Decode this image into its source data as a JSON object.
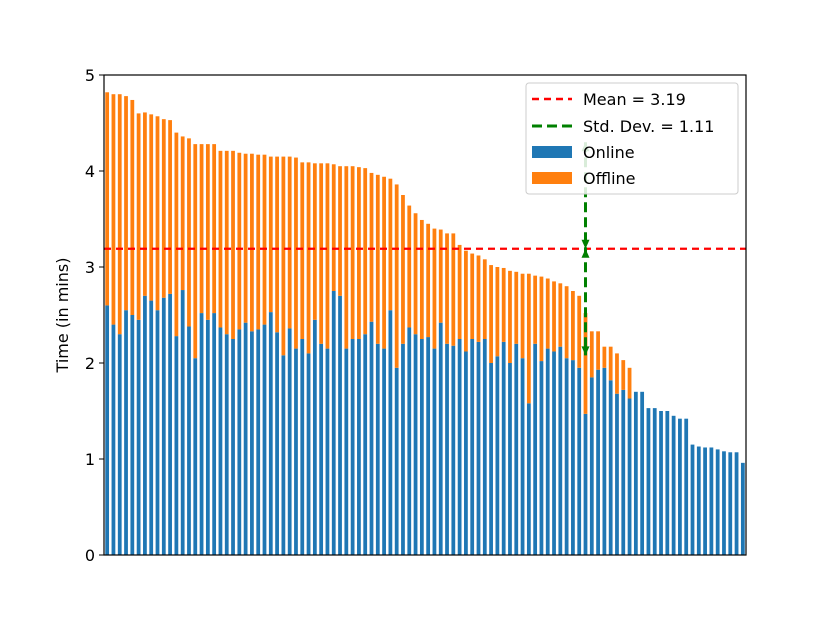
{
  "chart_data": {
    "type": "bar",
    "stacked": true,
    "title": "",
    "xlabel": "",
    "ylabel": "Time (in mins)",
    "ylim": [
      0,
      5
    ],
    "yticks": [
      "0",
      "1",
      "2",
      "3",
      "4",
      "5"
    ],
    "grid": false,
    "legend_position": "top-right",
    "colors": {
      "online": "#1f77b4",
      "offline": "#ff7f0e",
      "mean": "#ff0000",
      "std": "#008000"
    },
    "series": [
      {
        "name": "Online",
        "values": [
          2.6,
          2.4,
          2.3,
          2.55,
          2.5,
          2.45,
          2.7,
          2.65,
          2.55,
          2.68,
          2.72,
          2.28,
          2.76,
          2.38,
          2.05,
          2.52,
          2.45,
          2.52,
          2.37,
          2.3,
          2.25,
          2.35,
          2.42,
          2.33,
          2.35,
          2.4,
          2.53,
          2.32,
          2.08,
          2.36,
          2.15,
          2.25,
          2.1,
          2.45,
          2.2,
          2.15,
          2.75,
          2.7,
          2.15,
          2.25,
          2.25,
          2.3,
          2.43,
          2.2,
          2.15,
          2.55,
          1.95,
          2.2,
          2.37,
          2.3,
          2.25,
          2.27,
          2.15,
          2.42,
          2.2,
          2.18,
          2.25,
          2.12,
          2.25,
          2.22,
          2.25,
          2.0,
          2.07,
          2.22,
          2.0,
          2.2,
          2.05,
          1.58,
          2.2,
          2.02,
          2.15,
          2.12,
          2.17,
          2.05,
          2.03,
          1.95,
          1.47,
          1.85,
          1.93,
          1.95,
          1.82,
          1.68,
          1.72,
          1.63,
          1.7,
          1.7,
          1.53,
          1.53,
          1.5,
          1.5,
          1.45,
          1.42,
          1.42,
          1.15,
          1.13,
          1.12,
          1.12,
          1.1,
          1.08,
          1.07,
          1.07,
          0.96
        ]
      },
      {
        "name": "Offline",
        "values": [
          2.22,
          2.4,
          2.5,
          2.23,
          2.24,
          2.15,
          1.91,
          1.94,
          2.02,
          1.86,
          1.81,
          2.12,
          1.6,
          1.96,
          2.23,
          1.76,
          1.83,
          1.76,
          1.84,
          1.91,
          1.96,
          1.84,
          1.76,
          1.85,
          1.82,
          1.77,
          1.62,
          1.83,
          2.07,
          1.79,
          1.99,
          1.84,
          1.99,
          1.63,
          1.88,
          1.93,
          1.32,
          1.35,
          1.9,
          1.8,
          1.79,
          1.73,
          1.55,
          1.76,
          1.79,
          1.37,
          1.91,
          1.55,
          1.27,
          1.26,
          1.24,
          1.18,
          1.25,
          0.97,
          1.15,
          1.17,
          0.98,
          1.05,
          0.89,
          0.9,
          0.83,
          1.02,
          0.93,
          0.77,
          0.96,
          0.75,
          0.88,
          1.35,
          0.71,
          0.88,
          0.73,
          0.73,
          0.66,
          0.75,
          0.72,
          0.75,
          1.05,
          0.48,
          0.4,
          0.22,
          0.35,
          0.42,
          0.31,
          0.32,
          0,
          0,
          0,
          0,
          0,
          0,
          0,
          0,
          0,
          0,
          0,
          0,
          0,
          0,
          0,
          0,
          0,
          0
        ]
      }
    ],
    "mean_line": {
      "label": "Mean = 3.19",
      "value": 3.19
    },
    "std_dev": {
      "label": "Std. Dev. = 1.11",
      "value": 1.11,
      "center": 3.19,
      "bar_index": 76
    }
  }
}
